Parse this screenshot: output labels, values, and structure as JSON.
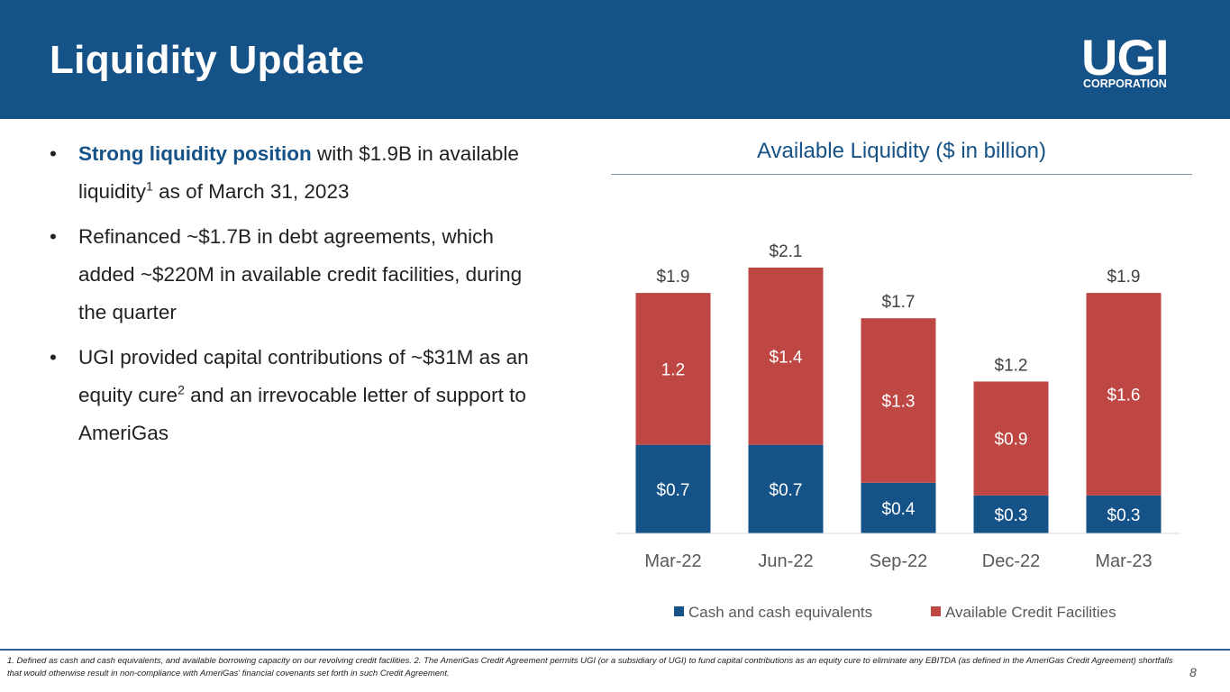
{
  "slide": {
    "title": "Liquidity Update",
    "page_number": "8",
    "logo_main": "UGI",
    "logo_sub": "CORPORATION"
  },
  "bullets": [
    {
      "dot": "•",
      "highlight": "Strong liquidity position",
      "pre": "",
      "text": " with $1.9B in available liquidity",
      "sup": "1",
      "post": " as of March 31, 2023"
    },
    {
      "dot": "•",
      "highlight": "",
      "pre": "Refinanced ~$1.7B in debt agreements, which added ~$220M in available credit facilities, during the quarter",
      "text": "",
      "sup": "",
      "post": ""
    },
    {
      "dot": "•",
      "highlight": "",
      "pre": "UGI provided capital contributions of ~$31M as an equity cure",
      "text": "",
      "sup": "2",
      "post": " and an irrevocable letter of support to AmeriGas"
    }
  ],
  "footnote": "1. Defined as cash and cash equivalents, and available borrowing capacity on our revolving credit facilities.  2. The AmeriGas Credit Agreement permits UGI (or a subsidiary of UGI) to fund capital contributions as an equity cure to eliminate any EBITDA (as defined in the AmeriGas Credit Agreement) shortfalls that would otherwise result in non-compliance with AmeriGas' financial covenants set forth in such Credit Agreement.",
  "colors": {
    "header": "#155287",
    "cash": "#155287",
    "credit": "#BE4744",
    "axis": "#d9d9d9"
  },
  "chart_data": {
    "type": "bar",
    "stacked": true,
    "title": "Available Liquidity ($ in billion)",
    "categories": [
      "Mar-22",
      "Jun-22",
      "Sep-22",
      "Dec-22",
      "Mar-23"
    ],
    "series": [
      {
        "name": "Cash and cash equivalents",
        "values": [
          0.7,
          0.7,
          0.4,
          0.3,
          0.3
        ],
        "labels": [
          "$0.7",
          "$0.7",
          "$0.4",
          "$0.3",
          "$0.3"
        ]
      },
      {
        "name": "Available Credit Facilities",
        "values": [
          1.2,
          1.4,
          1.3,
          0.9,
          1.6
        ],
        "labels": [
          "1.2",
          "$1.4",
          "$1.3",
          "$0.9",
          "$1.6"
        ]
      }
    ],
    "totals": [
      "$1.9",
      "$2.1",
      "$1.7",
      "$1.2",
      "$1.9"
    ],
    "legend_position": "bottom",
    "ylim": [
      0,
      2.1
    ],
    "grid": false
  }
}
